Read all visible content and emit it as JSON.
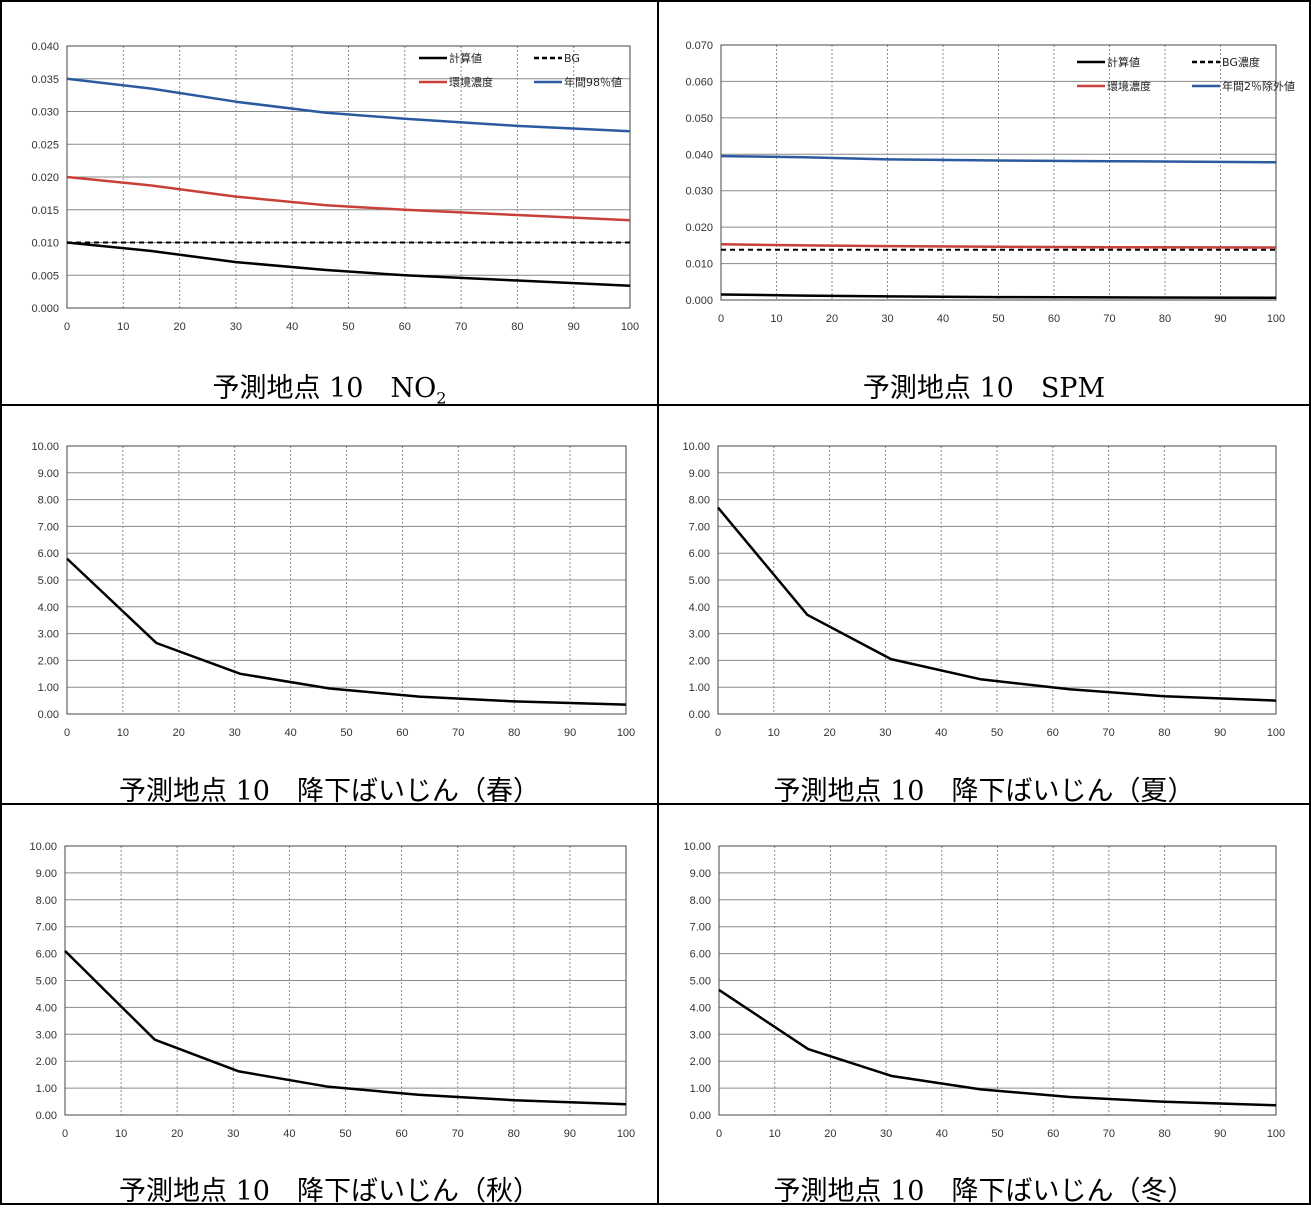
{
  "chart_data": [
    {
      "type": "line",
      "caption_main": "予測地点 10　NO",
      "caption_sub": "2",
      "xlim": [
        0,
        100
      ],
      "ylim": [
        0,
        0.04
      ],
      "x_ticks": [
        "0",
        "10",
        "20",
        "30",
        "40",
        "50",
        "60",
        "70",
        "80",
        "90",
        "100"
      ],
      "y_ticks": [
        "0.000",
        "0.005",
        "0.010",
        "0.015",
        "0.020",
        "0.025",
        "0.030",
        "0.035",
        "0.040"
      ],
      "grid": true,
      "legend_position": "top-right",
      "series": [
        {
          "name": "計算値",
          "color": "#000000",
          "style": "solid",
          "points": [
            [
              0,
              0.01
            ],
            [
              15,
              0.0087
            ],
            [
              30,
              0.007
            ],
            [
              46,
              0.0058
            ],
            [
              60,
              0.005
            ],
            [
              80,
              0.0042
            ],
            [
              100,
              0.0034
            ]
          ]
        },
        {
          "name": "BG",
          "color": "#000000",
          "style": "dashed",
          "points": [
            [
              0,
              0.01
            ],
            [
              100,
              0.01
            ]
          ]
        },
        {
          "name": "環境濃度",
          "color": "#c8403a",
          "style": "solid",
          "points": [
            [
              0,
              0.02
            ],
            [
              15,
              0.0187
            ],
            [
              30,
              0.017
            ],
            [
              46,
              0.0157
            ],
            [
              60,
              0.015
            ],
            [
              80,
              0.0142
            ],
            [
              100,
              0.0134
            ]
          ]
        },
        {
          "name": "年間98％値",
          "color": "#2b5aa0",
          "style": "solid",
          "points": [
            [
              0,
              0.035
            ],
            [
              15,
              0.0335
            ],
            [
              30,
              0.0315
            ],
            [
              46,
              0.0298
            ],
            [
              60,
              0.0289
            ],
            [
              80,
              0.0278
            ],
            [
              100,
              0.027
            ]
          ]
        }
      ]
    },
    {
      "type": "line",
      "caption_main": "予測地点 10　SPM",
      "caption_sub": "",
      "xlim": [
        0,
        100
      ],
      "ylim": [
        0,
        0.07
      ],
      "x_ticks": [
        "0",
        "10",
        "20",
        "30",
        "40",
        "50",
        "60",
        "70",
        "80",
        "90",
        "100"
      ],
      "y_ticks": [
        "0.000",
        "0.010",
        "0.020",
        "0.030",
        "0.040",
        "0.050",
        "0.060",
        "0.070"
      ],
      "grid": true,
      "legend_position": "top-right",
      "series": [
        {
          "name": "計算値",
          "color": "#000000",
          "style": "solid",
          "points": [
            [
              0,
              0.0015
            ],
            [
              15,
              0.0012
            ],
            [
              30,
              0.001
            ],
            [
              50,
              0.0008
            ],
            [
              70,
              0.0007
            ],
            [
              100,
              0.0006
            ]
          ]
        },
        {
          "name": "BG濃度",
          "color": "#000000",
          "style": "dashed",
          "points": [
            [
              0,
              0.0138
            ],
            [
              100,
              0.0138
            ]
          ]
        },
        {
          "name": "環境濃度",
          "color": "#c8403a",
          "style": "solid",
          "points": [
            [
              0,
              0.0153
            ],
            [
              15,
              0.015
            ],
            [
              30,
              0.0148
            ],
            [
              50,
              0.0146
            ],
            [
              70,
              0.0145
            ],
            [
              100,
              0.0144
            ]
          ]
        },
        {
          "name": "年間2％除外値",
          "color": "#2b5aa0",
          "style": "solid",
          "points": [
            [
              0,
              0.0395
            ],
            [
              15,
              0.0392
            ],
            [
              30,
              0.0386
            ],
            [
              50,
              0.0383
            ],
            [
              70,
              0.0381
            ],
            [
              100,
              0.0378
            ]
          ]
        }
      ]
    },
    {
      "type": "line",
      "caption_main": "予測地点 10　降下ばいじん（春）",
      "caption_sub": "",
      "xlim": [
        0,
        100
      ],
      "ylim": [
        0,
        10
      ],
      "x_ticks": [
        "0",
        "10",
        "20",
        "30",
        "40",
        "50",
        "60",
        "70",
        "80",
        "90",
        "100"
      ],
      "y_ticks": [
        "0.00",
        "1.00",
        "2.00",
        "3.00",
        "4.00",
        "5.00",
        "6.00",
        "7.00",
        "8.00",
        "9.00",
        "10.00"
      ],
      "grid": true,
      "series": [
        {
          "color": "#000000",
          "style": "solid",
          "points": [
            [
              0,
              5.8
            ],
            [
              16,
              2.65
            ],
            [
              31,
              1.5
            ],
            [
              47,
              0.95
            ],
            [
              63,
              0.65
            ],
            [
              80,
              0.47
            ],
            [
              100,
              0.35
            ]
          ]
        }
      ]
    },
    {
      "type": "line",
      "caption_main": "予測地点 10　降下ばいじん（夏）",
      "caption_sub": "",
      "xlim": [
        0,
        100
      ],
      "ylim": [
        0,
        10
      ],
      "x_ticks": [
        "0",
        "10",
        "20",
        "30",
        "40",
        "50",
        "60",
        "70",
        "80",
        "90",
        "100"
      ],
      "y_ticks": [
        "0.00",
        "1.00",
        "2.00",
        "3.00",
        "4.00",
        "5.00",
        "6.00",
        "7.00",
        "8.00",
        "9.00",
        "10.00"
      ],
      "grid": true,
      "series": [
        {
          "color": "#000000",
          "style": "solid",
          "points": [
            [
              0,
              7.7
            ],
            [
              16,
              3.7
            ],
            [
              31,
              2.05
            ],
            [
              47,
              1.3
            ],
            [
              63,
              0.92
            ],
            [
              80,
              0.66
            ],
            [
              100,
              0.5
            ]
          ]
        }
      ]
    },
    {
      "type": "line",
      "caption_main": "予測地点 10　降下ばいじん（秋）",
      "caption_sub": "",
      "xlim": [
        0,
        100
      ],
      "ylim": [
        0,
        10
      ],
      "x_ticks": [
        "0",
        "10",
        "20",
        "30",
        "40",
        "50",
        "60",
        "70",
        "80",
        "90",
        "100"
      ],
      "y_ticks": [
        "0.00",
        "1.00",
        "2.00",
        "3.00",
        "4.00",
        "5.00",
        "6.00",
        "7.00",
        "8.00",
        "9.00",
        "10.00"
      ],
      "grid": true,
      "series": [
        {
          "color": "#000000",
          "style": "solid",
          "points": [
            [
              0,
              6.1
            ],
            [
              16,
              2.8
            ],
            [
              31,
              1.62
            ],
            [
              47,
              1.05
            ],
            [
              63,
              0.75
            ],
            [
              80,
              0.55
            ],
            [
              100,
              0.4
            ]
          ]
        }
      ]
    },
    {
      "type": "line",
      "caption_main": "予測地点 10　降下ばいじん（冬）",
      "caption_sub": "",
      "xlim": [
        0,
        100
      ],
      "ylim": [
        0,
        10
      ],
      "x_ticks": [
        "0",
        "10",
        "20",
        "30",
        "40",
        "50",
        "60",
        "70",
        "80",
        "90",
        "100"
      ],
      "y_ticks": [
        "0.00",
        "1.00",
        "2.00",
        "3.00",
        "4.00",
        "5.00",
        "6.00",
        "7.00",
        "8.00",
        "9.00",
        "10.00"
      ],
      "grid": true,
      "series": [
        {
          "color": "#000000",
          "style": "solid",
          "points": [
            [
              0,
              4.65
            ],
            [
              16,
              2.45
            ],
            [
              31,
              1.45
            ],
            [
              47,
              0.95
            ],
            [
              63,
              0.67
            ],
            [
              80,
              0.49
            ],
            [
              100,
              0.36
            ]
          ]
        }
      ]
    }
  ]
}
